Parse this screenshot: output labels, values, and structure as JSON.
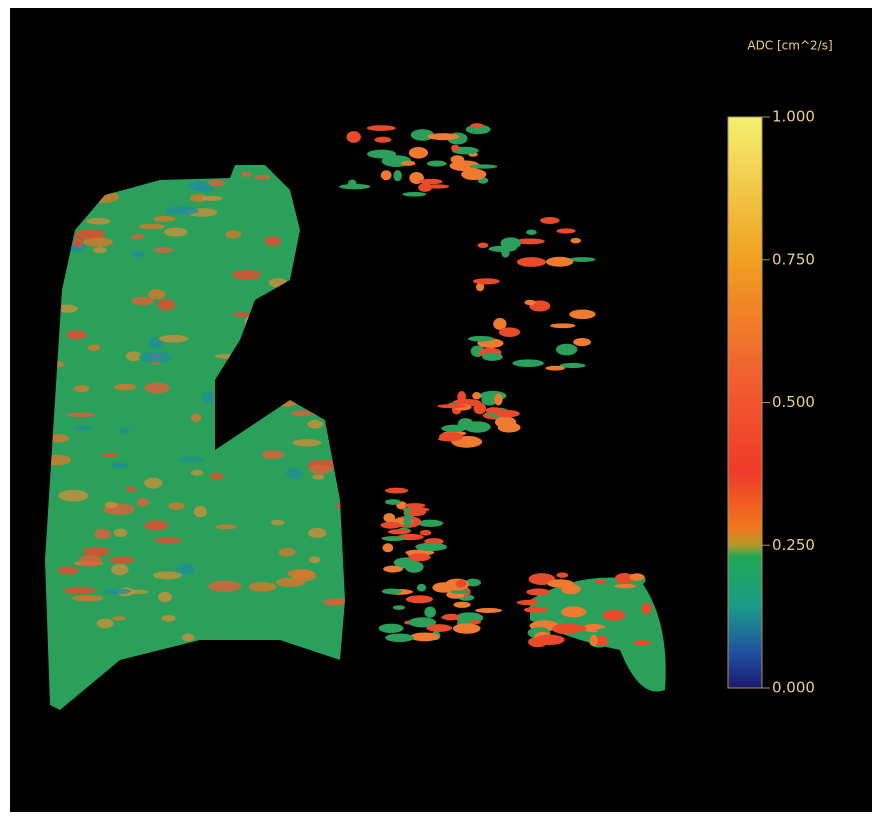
{
  "colorbar": {
    "title": "ADC [cm^2/s]",
    "range": [
      0,
      1
    ],
    "ticks": [
      {
        "value": 0,
        "label": "0.000"
      },
      {
        "value": 0.25,
        "label": "0.250"
      },
      {
        "value": 0.5,
        "label": "0.500"
      },
      {
        "value": 0.75,
        "label": "0.750"
      },
      {
        "value": 1,
        "label": "1.000"
      }
    ]
  }
}
